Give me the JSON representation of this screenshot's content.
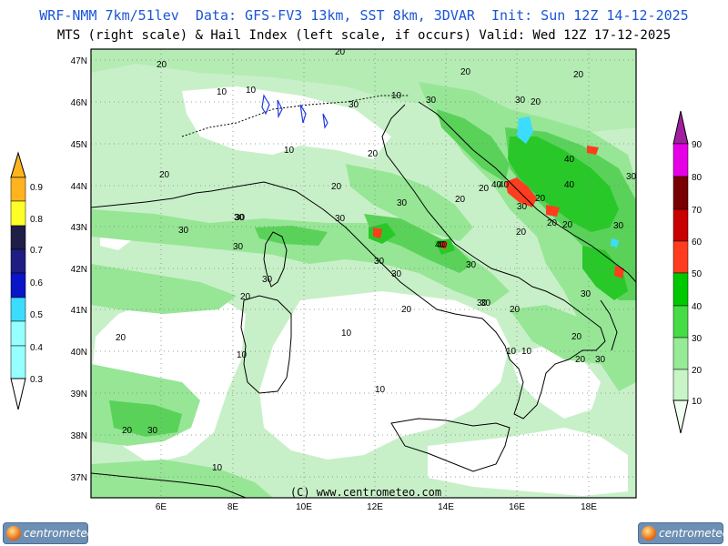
{
  "header": {
    "line1": "WRF-NMM 7km/51lev  Data: GFS-FV3 13km, SST 8km, 3DVAR  Init: Sun 12Z 14-12-2025",
    "line2": "MTS (right scale) & Hail Index (left scale, if occurs) Valid: Wed 12Z 17-12-2025"
  },
  "map": {
    "lon_labels": [
      "6E",
      "8E",
      "10E",
      "12E",
      "14E",
      "16E",
      "18E"
    ],
    "lat_labels": [
      "47N",
      "46N",
      "45N",
      "44N",
      "43N",
      "42N",
      "41N",
      "40N",
      "39N",
      "38N",
      "37N"
    ],
    "contour_labels": [
      "20",
      "20",
      "10",
      "10",
      "10",
      "30",
      "20",
      "20",
      "10",
      "20",
      "30",
      "20",
      "30",
      "20",
      "30",
      "30",
      "40",
      "20",
      "30",
      "30",
      "30",
      "30",
      "20",
      "20",
      "20",
      "30",
      "30",
      "20",
      "40",
      "40",
      "20",
      "30",
      "10",
      "10",
      "10",
      "20",
      "20",
      "30",
      "10",
      "30",
      "30",
      "20",
      "20",
      "30",
      "20",
      "10",
      "10",
      "20",
      "30",
      "20",
      "40",
      "30",
      "40",
      "30",
      "30",
      "40",
      "20",
      "30"
    ],
    "copyright": "(C) www.centrometeo.com",
    "colors": {
      "land_mts_low": "#d6f5d6",
      "mts_10_20": "#c8f0c8",
      "mts_20_30": "#96e696",
      "mts_30_40": "#5ad25a",
      "mts_40_50": "#28c828",
      "mts_50_60": "#ff3c1e",
      "coast": "#000000",
      "lakes": "#1e3cdc"
    }
  },
  "left_scale": {
    "ticks": [
      "0.9",
      "0.8",
      "0.7",
      "0.6",
      "0.5",
      "0.4",
      "0.3"
    ],
    "colors": [
      "#ffb41e",
      "#ffff28",
      "#1e1e46",
      "#1e1e82",
      "#0a14c8",
      "#3cdcff",
      "#96ffff"
    ]
  },
  "right_scale": {
    "ticks": [
      "90",
      "80",
      "70",
      "60",
      "50",
      "40",
      "30",
      "20",
      "10"
    ],
    "colors": [
      "#a01ea0",
      "#e600e6",
      "#780000",
      "#c80000",
      "#ff3c1e",
      "#00c800",
      "#46dc46",
      "#96eb96",
      "#c8f5c8",
      "#f0fff0"
    ]
  },
  "logos": {
    "text": "centrometeo"
  }
}
